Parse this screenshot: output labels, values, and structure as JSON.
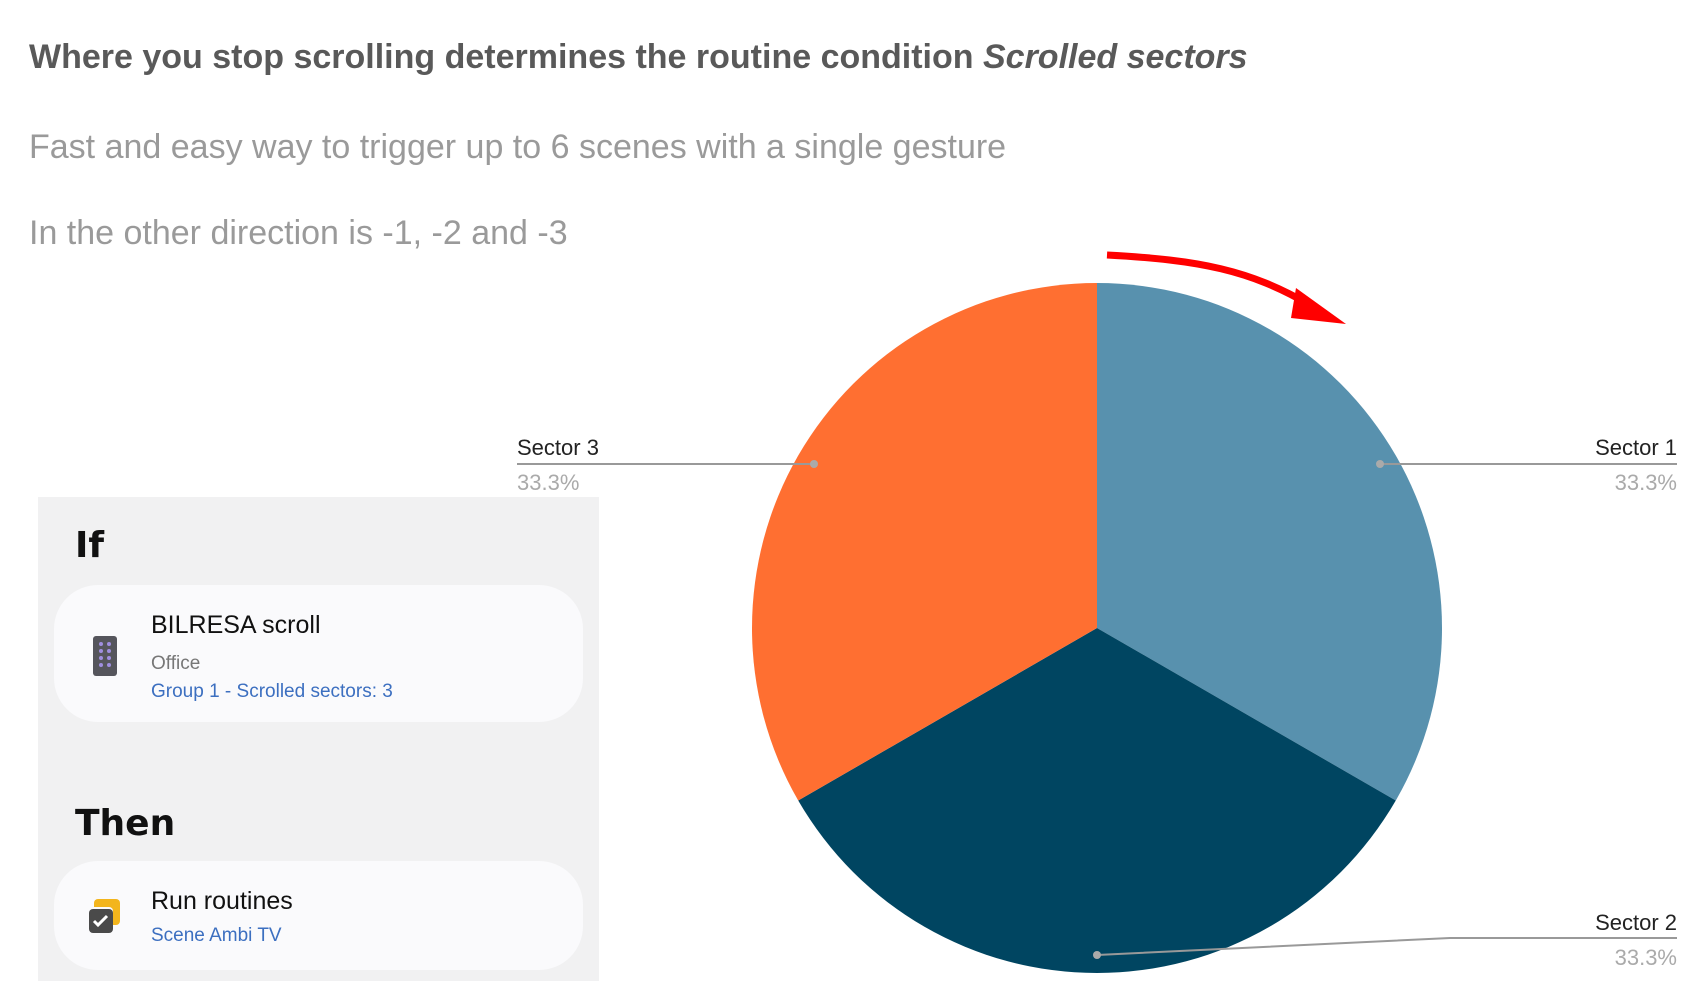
{
  "header": {
    "title_plain": "Where you stop scrolling determines the routine condition ",
    "title_italic": "Scrolled sectors",
    "subtitle1": "Fast and easy way to trigger up to 6 scenes with a single gesture",
    "subtitle2": "In the other direction is -1, -2 and -3"
  },
  "routine": {
    "if_label": "If",
    "then_label": "Then",
    "condition": {
      "icon": "remote-control-icon",
      "title": "BILRESA scroll",
      "room": "Office",
      "detail": "Group 1 - Scrolled sectors: 3"
    },
    "action": {
      "icon": "run-routines-icon",
      "title": "Run routines",
      "detail": "Scene Ambi TV"
    }
  },
  "chart_data": {
    "type": "pie",
    "direction": "clockwise",
    "start": "top",
    "categories": [
      "Sector 1",
      "Sector 2",
      "Sector 3"
    ],
    "values": [
      33.3,
      33.3,
      33.3
    ],
    "labels": [
      "33.3%",
      "33.3%",
      "33.3%"
    ],
    "colors": [
      "#5891AE",
      "#004561",
      "#FF6F31"
    ],
    "annotation": "red clockwise arrow"
  }
}
